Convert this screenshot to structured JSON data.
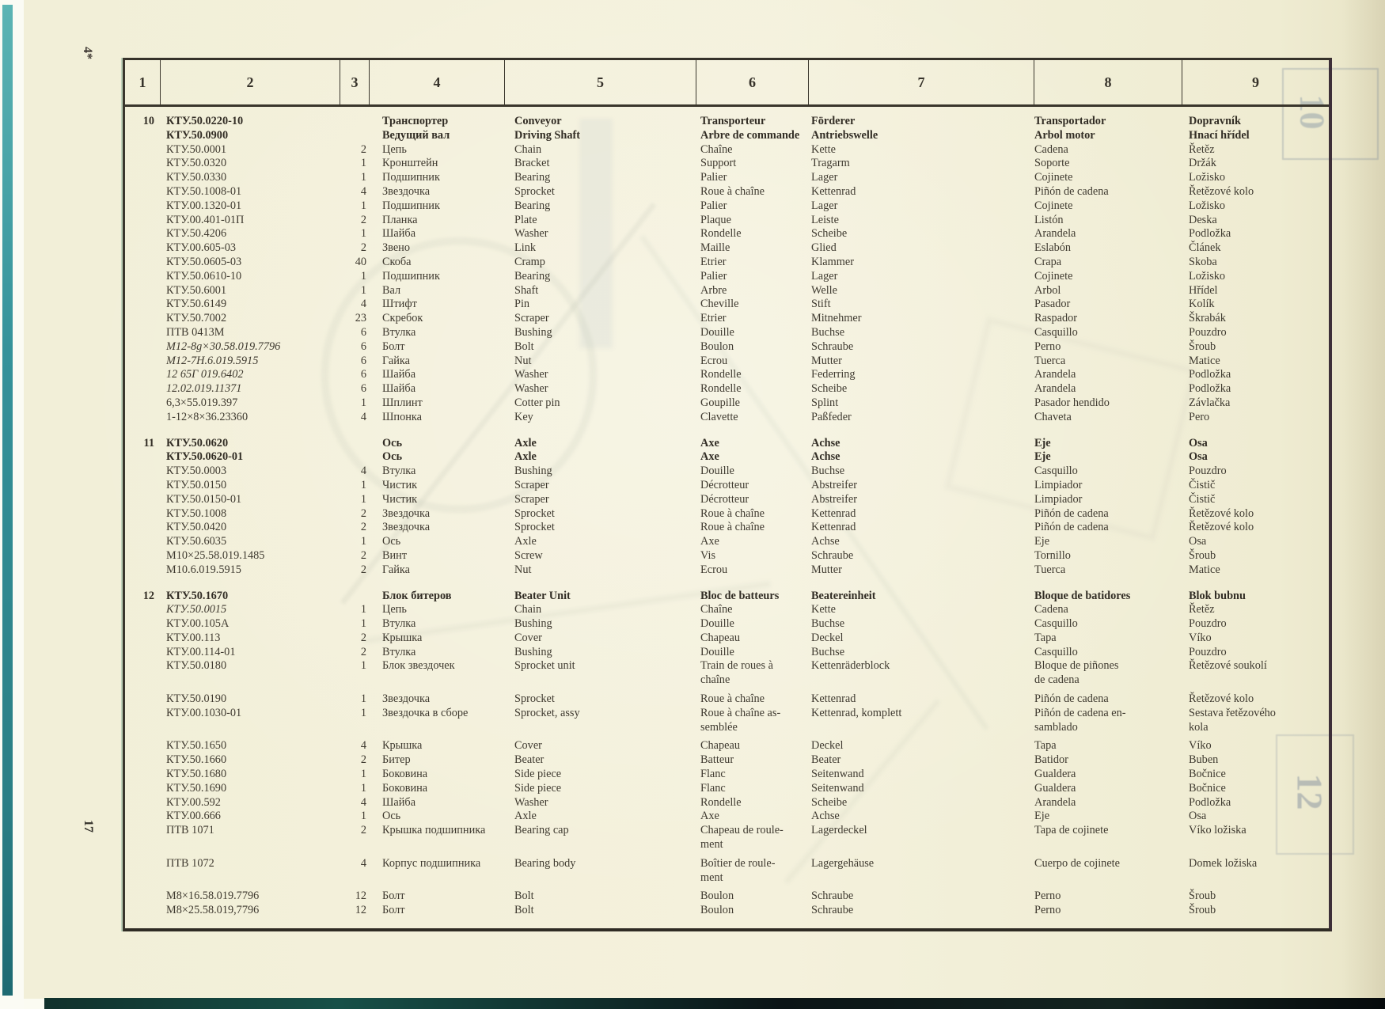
{
  "page": {
    "corner_mark": "4*",
    "page_number": "17",
    "bleed_through": {
      "top_right": "10",
      "right_side": "12"
    },
    "colors": {
      "paper": "#f3f0da",
      "ink": "#3f3a30",
      "edge_teal": "#35929a",
      "frame": "#36322a"
    }
  },
  "table": {
    "headers": [
      "1",
      "2",
      "3",
      "4",
      "5",
      "6",
      "7",
      "8",
      "9"
    ],
    "groups": [
      {
        "item": "10",
        "rows": [
          {
            "part": "КТУ.50.0220-10",
            "qty": "",
            "ru": "Транспортер",
            "en": "Conveyor",
            "fr": "Transporteur",
            "de": "Förderer",
            "es": "Transportador",
            "cs": "Dopravník",
            "bold": true
          },
          {
            "part": "КТУ.50.0900",
            "qty": "",
            "ru": "Ведущий вал",
            "en": "Driving Shaft",
            "fr": "Arbre de commande",
            "de": "Antriebswelle",
            "es": "Arbol motor",
            "cs": "Hnací hřídel",
            "bold": true
          },
          {
            "part": "КТУ.50.0001",
            "qty": "2",
            "ru": "Цепь",
            "en": "Chain",
            "fr": "Chaîne",
            "de": "Kette",
            "es": "Cadena",
            "cs": "Řetěz"
          },
          {
            "part": "КТУ.50.0320",
            "qty": "1",
            "ru": "Кронштейн",
            "en": "Bracket",
            "fr": "Support",
            "de": "Tragarm",
            "es": "Soporte",
            "cs": "Držák"
          },
          {
            "part": "КТУ.50.0330",
            "qty": "1",
            "ru": "Подшипник",
            "en": "Bearing",
            "fr": "Palier",
            "de": "Lager",
            "es": "Cojinete",
            "cs": "Ložisko"
          },
          {
            "part": "КТУ.50.1008-01",
            "qty": "4",
            "ru": "Звездочка",
            "en": "Sprocket",
            "fr": "Roue à chaîne",
            "de": "Kettenrad",
            "es": "Piñón de cadena",
            "cs": "Řetězové kolo"
          },
          {
            "part": "КТУ.00.1320-01",
            "qty": "1",
            "ru": "Подшипник",
            "en": "Bearing",
            "fr": "Palier",
            "de": "Lager",
            "es": "Cojinete",
            "cs": "Ložisko"
          },
          {
            "part": "КТУ.00.401-01П",
            "qty": "2",
            "ru": "Планка",
            "en": "Plate",
            "fr": "Plaque",
            "de": "Leiste",
            "es": "Listón",
            "cs": "Deska"
          },
          {
            "part": "КТУ.50.4206",
            "qty": "1",
            "ru": "Шайба",
            "en": "Washer",
            "fr": "Rondelle",
            "de": "Scheibe",
            "es": "Arandela",
            "cs": "Podložka"
          },
          {
            "part": "КТУ.00.605-03",
            "qty": "2",
            "ru": "Звено",
            "en": "Link",
            "fr": "Maille",
            "de": "Glied",
            "es": "Eslabón",
            "cs": "Článek"
          },
          {
            "part": "КТУ.50.0605-03",
            "qty": "40",
            "ru": "Скоба",
            "en": "Cramp",
            "fr": "Etrier",
            "de": "Klammer",
            "es": "Crapa",
            "cs": "Skoba"
          },
          {
            "part": "КТУ.50.0610-10",
            "qty": "1",
            "ru": "Подшипник",
            "en": "Bearing",
            "fr": "Palier",
            "de": "Lager",
            "es": "Cojinete",
            "cs": "Ložisko"
          },
          {
            "part": "КТУ.50.6001",
            "qty": "1",
            "ru": "Вал",
            "en": "Shaft",
            "fr": "Arbre",
            "de": "Welle",
            "es": "Arbol",
            "cs": "Hřídel"
          },
          {
            "part": "КТУ.50.6149",
            "qty": "4",
            "ru": "Штифт",
            "en": "Pin",
            "fr": "Cheville",
            "de": "Stift",
            "es": "Pasador",
            "cs": "Kolík"
          },
          {
            "part": "КТУ.50.7002",
            "qty": "23",
            "ru": "Скребок",
            "en": "Scraper",
            "fr": "Etrier",
            "de": "Mitnehmer",
            "es": "Raspador",
            "cs": "Škrabák"
          },
          {
            "part": "ПТВ 0413М",
            "qty": "6",
            "ru": "Втулка",
            "en": "Bushing",
            "fr": "Douille",
            "de": "Buchse",
            "es": "Casquillo",
            "cs": "Pouzdro"
          },
          {
            "part": "М12-8g×30.58.019.7796",
            "qty": "6",
            "ru": "Болт",
            "en": "Bolt",
            "fr": "Boulon",
            "de": "Schraube",
            "es": "Perno",
            "cs": "Šroub",
            "italic": true
          },
          {
            "part": "М12-7Н.6.019.5915",
            "qty": "6",
            "ru": "Гайка",
            "en": "Nut",
            "fr": "Ecrou",
            "de": "Mutter",
            "es": "Tuerca",
            "cs": "Matice",
            "italic": true
          },
          {
            "part": "12 65Г 019.6402",
            "qty": "6",
            "ru": "Шайба",
            "en": "Washer",
            "fr": "Rondelle",
            "de": "Federring",
            "es": "Arandela",
            "cs": "Podložka",
            "italic": true
          },
          {
            "part": "12.02.019.11371",
            "qty": "6",
            "ru": "Шайба",
            "en": "Washer",
            "fr": "Rondelle",
            "de": "Scheibe",
            "es": "Arandela",
            "cs": "Podložka",
            "italic": true
          },
          {
            "part": "6,3×55.019.397",
            "qty": "1",
            "ru": "Шплинт",
            "en": "Cotter pin",
            "fr": "Goupille",
            "de": "Splint",
            "es": "Pasador hendido",
            "cs": "Závlačka"
          },
          {
            "part": "1-12×8×36.23360",
            "qty": "4",
            "ru": "Шпонка",
            "en": "Key",
            "fr": "Clavette",
            "de": "Paßfeder",
            "es": "Chaveta",
            "cs": "Pero"
          }
        ]
      },
      {
        "item": "11",
        "rows": [
          {
            "part": "КТУ.50.0620",
            "qty": "",
            "ru": "Ось",
            "en": "Axle",
            "fr": "Axe",
            "de": "Achse",
            "es": "Eje",
            "cs": "Osa",
            "bold": true
          },
          {
            "part": "КТУ.50.0620-01",
            "qty": "",
            "ru": "Ось",
            "en": "Axle",
            "fr": "Axe",
            "de": "Achse",
            "es": "Eje",
            "cs": "Osa",
            "bold": true
          },
          {
            "part": "КТУ.50.0003",
            "qty": "4",
            "ru": "Втулка",
            "en": "Bushing",
            "fr": "Douille",
            "de": "Buchse",
            "es": "Casquillo",
            "cs": "Pouzdro"
          },
          {
            "part": "КТУ.50.0150",
            "qty": "1",
            "ru": "Чистик",
            "en": "Scraper",
            "fr": "Décrotteur",
            "de": "Abstreifer",
            "es": "Limpiador",
            "cs": "Čistič"
          },
          {
            "part": "КТУ.50.0150-01",
            "qty": "1",
            "ru": "Чистик",
            "en": "Scraper",
            "fr": "Décrotteur",
            "de": "Abstreifer",
            "es": "Limpiador",
            "cs": "Čistič"
          },
          {
            "part": "КТУ.50.1008",
            "qty": "2",
            "ru": "Звездочка",
            "en": "Sprocket",
            "fr": "Roue à chaîne",
            "de": "Kettenrad",
            "es": "Piñón de cadena",
            "cs": "Řetězové kolo"
          },
          {
            "part": "КТУ.50.0420",
            "qty": "2",
            "ru": "Звездочка",
            "en": "Sprocket",
            "fr": "Roue à chaîne",
            "de": "Kettenrad",
            "es": "Piñón de cadena",
            "cs": "Řetězové kolo"
          },
          {
            "part": "КТУ.50.6035",
            "qty": "1",
            "ru": "Ось",
            "en": "Axle",
            "fr": "Axe",
            "de": "Achse",
            "es": "Eje",
            "cs": "Osa"
          },
          {
            "part": "М10×25.58.019.1485",
            "qty": "2",
            "ru": "Винт",
            "en": "Screw",
            "fr": "Vis",
            "de": "Schraube",
            "es": "Tornillo",
            "cs": "Šroub"
          },
          {
            "part": "М10.6.019.5915",
            "qty": "2",
            "ru": "Гайка",
            "en": "Nut",
            "fr": "Ecrou",
            "de": "Mutter",
            "es": "Tuerca",
            "cs": "Matice"
          }
        ]
      },
      {
        "item": "12",
        "rows": [
          {
            "part": "КТУ.50.1670",
            "qty": "",
            "ru": "Блок битеров",
            "en": "Beater Unit",
            "fr": "Bloc de batteurs",
            "de": "Beatereinheit",
            "es": "Bloque de batidores",
            "cs": "Blok bubnu",
            "bold": true
          },
          {
            "part": "КТУ.50.0015",
            "qty": "1",
            "ru": "Цепь",
            "en": "Chain",
            "fr": "Chaîne",
            "de": "Kette",
            "es": "Cadena",
            "cs": "Řetěz",
            "italic": true
          },
          {
            "part": "КТУ.00.105А",
            "qty": "1",
            "ru": "Втулка",
            "en": "Bushing",
            "fr": "Douille",
            "de": "Buchse",
            "es": "Casquillo",
            "cs": "Pouzdro"
          },
          {
            "part": "КТУ.00.113",
            "qty": "2",
            "ru": "Крышка",
            "en": "Cover",
            "fr": "Chapeau",
            "de": "Deckel",
            "es": "Tapa",
            "cs": "Víko"
          },
          {
            "part": "КТУ.00.114-01",
            "qty": "2",
            "ru": "Втулка",
            "en": "Bushing",
            "fr": "Douille",
            "de": "Buchse",
            "es": "Casquillo",
            "cs": "Pouzdro"
          },
          {
            "part": "КТУ.50.0180",
            "qty": "1",
            "ru": "Блок звездочек",
            "en": "Sprocket unit",
            "fr": "Train de roues à\nchaîne",
            "de": "Kettenräderblock",
            "es": "Bloque de piñones\nde cadena",
            "cs": "Řetězové soukolí"
          },
          {
            "part": "КТУ.50.0190",
            "qty": "1",
            "ru": "Звездочка",
            "en": "Sprocket",
            "fr": "Roue à chaîne",
            "de": "Kettenrad",
            "es": "Piñón de cadena",
            "cs": "Řetězové kolo",
            "gap": true
          },
          {
            "part": "КТУ.00.1030-01",
            "qty": "1",
            "ru": "Звездочка в сборе",
            "en": "Sprocket, assy",
            "fr": "Roue à chaîne as-\nsemblée",
            "de": "Kettenrad, komplett",
            "es": "Piñón de cadena en-\nsamblado",
            "cs": "Sestava řetězového\nkola"
          },
          {
            "part": "КТУ.50.1650",
            "qty": "4",
            "ru": "Крышка",
            "en": "Cover",
            "fr": "Chapeau",
            "de": "Deckel",
            "es": "Tapa",
            "cs": "Víko",
            "gap": true
          },
          {
            "part": "КТУ.50.1660",
            "qty": "2",
            "ru": "Битер",
            "en": "Beater",
            "fr": "Batteur",
            "de": "Beater",
            "es": "Batidor",
            "cs": "Buben"
          },
          {
            "part": "КТУ.50.1680",
            "qty": "1",
            "ru": "Боковина",
            "en": "Side piece",
            "fr": "Flanc",
            "de": "Seitenwand",
            "es": "Gualdera",
            "cs": "Bočnice"
          },
          {
            "part": "КТУ.50.1690",
            "qty": "1",
            "ru": "Боковина",
            "en": "Side piece",
            "fr": "Flanc",
            "de": "Seitenwand",
            "es": "Gualdera",
            "cs": "Bočnice"
          },
          {
            "part": "КТУ.00.592",
            "qty": "4",
            "ru": "Шайба",
            "en": "Washer",
            "fr": "Rondelle",
            "de": "Scheibe",
            "es": "Arandela",
            "cs": "Podložka"
          },
          {
            "part": "КТУ.00.666",
            "qty": "1",
            "ru": "Ось",
            "en": "Axle",
            "fr": "Axe",
            "de": "Achse",
            "es": "Eje",
            "cs": "Osa"
          },
          {
            "part": "ПТВ 1071",
            "qty": "2",
            "ru": "Крышка подшипника",
            "en": "Bearing cap",
            "fr": "Chapeau de roule-\nment",
            "de": "Lagerdeckel",
            "es": "Tapa de cojinete",
            "cs": "Víko ložiska"
          },
          {
            "part": "ПТВ 1072",
            "qty": "4",
            "ru": "Корпус подшипника",
            "en": "Bearing body",
            "fr": "Boîtier de roule-\nment",
            "de": "Lagergehäuse",
            "es": "Cuerpo de cojinete",
            "cs": "Domek ložiska",
            "gap": true
          },
          {
            "part": "М8×16.58.019.7796",
            "qty": "12",
            "ru": "Болт",
            "en": "Bolt",
            "fr": "Boulon",
            "de": "Schraube",
            "es": "Perno",
            "cs": "Šroub",
            "gap": true
          },
          {
            "part": "М8×25.58.019,7796",
            "qty": "12",
            "ru": "Болт",
            "en": "Bolt",
            "fr": "Boulon",
            "de": "Schraube",
            "es": "Perno",
            "cs": "Šroub"
          }
        ]
      }
    ]
  }
}
